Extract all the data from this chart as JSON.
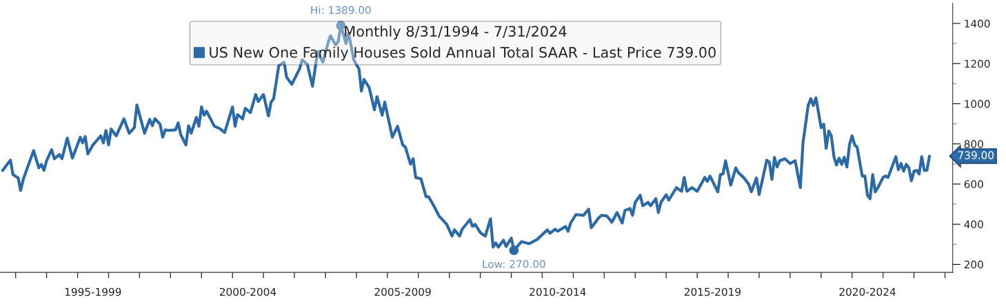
{
  "chart_data": {
    "type": "line",
    "legend_title": "Monthly 8/31/1994 - 7/31/2024",
    "legend": "top",
    "grid": false,
    "marker": "none",
    "line_style": "solid",
    "series": [
      {
        "name": "US New One Family Houses Sold Annual Total SAAR - Last Price 739.00",
        "color": "#2b6aa6",
        "x": [
          "1994-08",
          "1994-11",
          "1994-12",
          "1995-02",
          "1995-03",
          "1995-04",
          "1995-08",
          "1995-10",
          "1995-11",
          "1995-12",
          "1996-01",
          "1996-03",
          "1996-04",
          "1996-06",
          "1996-07",
          "1996-09",
          "1996-11",
          "1997-02",
          "1997-03",
          "1997-04",
          "1997-05",
          "1997-07",
          "1997-10",
          "1997-11",
          "1997-12",
          "1998-01",
          "1998-02",
          "1998-04",
          "1998-07",
          "1998-09",
          "1998-11",
          "1998-12",
          "1999-03",
          "1999-05",
          "1999-06",
          "1999-07",
          "1999-09",
          "1999-10",
          "1999-11",
          "1999-12",
          "2000-03",
          "2000-04",
          "2000-05",
          "2000-07",
          "2000-08",
          "2000-09",
          "2000-11",
          "2000-12",
          "2001-01",
          "2001-02",
          "2001-03",
          "2001-06",
          "2001-08",
          "2001-10",
          "2002-01",
          "2002-02",
          "2002-03",
          "2002-05",
          "2002-06",
          "2002-08",
          "2002-10",
          "2002-11",
          "2003-01",
          "2003-03",
          "2003-04",
          "2003-05",
          "2003-07",
          "2003-09",
          "2003-10",
          "2003-12",
          "2004-03",
          "2004-04",
          "2004-06",
          "2004-08",
          "2004-10",
          "2004-12",
          "2005-02",
          "2005-03",
          "2005-05",
          "2005-06",
          "2005-07",
          "2005-09",
          "2005-10",
          "2005-12",
          "2006-02",
          "2006-03",
          "2006-04",
          "2006-06",
          "2006-08",
          "2006-09",
          "2006-11",
          "2006-12",
          "2007-03",
          "2007-05",
          "2007-07",
          "2007-08",
          "2007-10",
          "2007-11",
          "2007-12",
          "2008-02",
          "2008-04",
          "2008-05",
          "2008-07",
          "2008-09",
          "2008-10",
          "2008-12",
          "2009-02",
          "2009-03",
          "2009-05",
          "2009-06",
          "2009-09",
          "2009-10",
          "2009-11",
          "2010-01",
          "2010-03",
          "2010-05",
          "2010-06",
          "2010-07",
          "2010-08",
          "2010-10",
          "2010-11",
          "2011-01",
          "2011-02",
          "2011-05",
          "2011-08",
          "2011-11",
          "2012-01",
          "2012-03",
          "2012-04",
          "2012-06",
          "2012-07",
          "2012-10",
          "2012-11",
          "2012-12",
          "2013-02",
          "2013-05",
          "2013-07",
          "2013-08",
          "2013-11",
          "2013-12",
          "2014-02",
          "2014-04",
          "2014-06",
          "2014-08",
          "2014-09",
          "2014-11",
          "2014-12",
          "2015-01",
          "2015-03",
          "2015-04",
          "2015-06",
          "2015-07",
          "2015-09",
          "2015-10",
          "2015-11",
          "2016-01",
          "2016-02",
          "2016-05",
          "2016-07",
          "2016-08",
          "2016-09",
          "2016-11",
          "2017-01",
          "2017-04",
          "2017-05",
          "2017-06",
          "2017-09",
          "2017-10",
          "2017-11",
          "2017-12",
          "2018-02",
          "2018-04",
          "2018-05",
          "2018-07",
          "2018-09",
          "2018-10",
          "2018-12",
          "2019-01",
          "2019-04",
          "2019-05",
          "2019-06",
          "2019-07",
          "2019-08",
          "2019-09",
          "2019-11",
          "2020-01",
          "2020-03",
          "2020-05",
          "2020-06",
          "2020-08",
          "2020-09",
          "2020-10",
          "2020-11",
          "2021-01",
          "2021-02",
          "2021-03",
          "2021-04",
          "2021-05",
          "2021-06",
          "2021-07",
          "2021-08",
          "2021-09",
          "2021-10",
          "2021-11",
          "2021-12",
          "2022-01",
          "2022-02",
          "2022-03",
          "2022-05",
          "2022-06",
          "2022-07",
          "2022-08",
          "2022-09",
          "2022-10",
          "2022-11",
          "2023-01",
          "2023-02",
          "2023-03",
          "2023-06",
          "2023-07",
          "2023-08",
          "2023-09",
          "2023-10",
          "2023-11",
          "2023-12",
          "2024-01",
          "2024-02",
          "2024-03",
          "2024-04",
          "2024-05",
          "2024-06",
          "2024-07"
        ],
        "values": [
          668,
          719,
          647,
          630,
          568,
          623,
          767,
          681,
          698,
          668,
          716,
          771,
          726,
          747,
          726,
          829,
          729,
          833,
          805,
          836,
          750,
          795,
          840,
          805,
          867,
          795,
          874,
          840,
          925,
          853,
          881,
          994,
          853,
          922,
          891,
          925,
          898,
          833,
          870,
          867,
          870,
          905,
          846,
          795,
          891,
          853,
          932,
          888,
          984,
          943,
          963,
          888,
          877,
          857,
          984,
          888,
          946,
          925,
          977,
          956,
          1046,
          1011,
          1046,
          939,
          1008,
          1025,
          1190,
          1207,
          1132,
          1097,
          1173,
          1218,
          1197,
          1087,
          1259,
          1207,
          1304,
          1338,
          1293,
          1310,
          1389,
          1300,
          1352,
          1218,
          1173,
          1063,
          1121,
          1080,
          970,
          1035,
          943,
          1008,
          833,
          888,
          795,
          784,
          699,
          726,
          633,
          626,
          537,
          537,
          492,
          441,
          427,
          399,
          341,
          372,
          341,
          375,
          423,
          389,
          399,
          358,
          341,
          427,
          286,
          307,
          286,
          320,
          289,
          331,
          270,
          313,
          303,
          324,
          348,
          372,
          355,
          375,
          365,
          389,
          365,
          406,
          448,
          444,
          475,
          382,
          434,
          444,
          441,
          410,
          458,
          406,
          468,
          478,
          444,
          509,
          544,
          492,
          509,
          492,
          527,
          458,
          509,
          547,
          520,
          582,
          564,
          633,
          564,
          582,
          564,
          633,
          613,
          640,
          561,
          647,
          650,
          716,
          595,
          681,
          657,
          633,
          599,
          561,
          630,
          547,
          719,
          709,
          623,
          733,
          685,
          716,
          726,
          702,
          716,
          582,
          805,
          991,
          1025,
          991,
          1029,
          881,
          898,
          778,
          864,
          840,
          736,
          695,
          729,
          698,
          733,
          685,
          795,
          840,
          795,
          784,
          640,
          640,
          544,
          527,
          647,
          561,
          582,
          633,
          640,
          633,
          736,
          671,
          702,
          664,
          698,
          681,
          616,
          664,
          668,
          650,
          736,
          668,
          668,
          739
        ]
      }
    ],
    "annotations": [
      {
        "text": "Hi: 1389.00",
        "x": "2005-07",
        "y": 1389
      },
      {
        "text": "Low: 270.00",
        "x": "2011-02",
        "y": 270
      },
      {
        "text": "739.00",
        "x": "2024-07",
        "y": 739
      }
    ],
    "xlim": [
      "1994-07",
      "2025-04"
    ],
    "xticks": [
      {
        "value": "1995",
        "label": null
      },
      {
        "value": "1996",
        "label": null
      },
      {
        "value": "1997",
        "label": null
      },
      {
        "value": "1998",
        "label": null
      },
      {
        "value": "1999",
        "label": null
      },
      {
        "value": "2000",
        "label": null
      },
      {
        "value": "2001",
        "label": null
      },
      {
        "value": "2002",
        "label": null
      },
      {
        "value": "2003",
        "label": null
      },
      {
        "value": "2004",
        "label": null
      },
      {
        "value": "2005",
        "label": null
      },
      {
        "value": "2006",
        "label": null
      },
      {
        "value": "2007",
        "label": null
      },
      {
        "value": "2008",
        "label": null
      },
      {
        "value": "2009",
        "label": null
      },
      {
        "value": "2010",
        "label": null
      },
      {
        "value": "2011",
        "label": null
      },
      {
        "value": "2012",
        "label": null
      },
      {
        "value": "2013",
        "label": null
      },
      {
        "value": "2014",
        "label": null
      },
      {
        "value": "2015",
        "label": null
      },
      {
        "value": "2016",
        "label": null
      },
      {
        "value": "2017",
        "label": null
      },
      {
        "value": "2018",
        "label": null
      },
      {
        "value": "2019",
        "label": null
      },
      {
        "value": "2020",
        "label": null
      },
      {
        "value": "2021",
        "label": null
      },
      {
        "value": "2022",
        "label": null
      },
      {
        "value": "2023",
        "label": null
      },
      {
        "value": "2024",
        "label": null
      },
      {
        "value": "2025",
        "label": null
      },
      {
        "value": "1997-07",
        "label": "1995-1999"
      },
      {
        "value": "2002-07",
        "label": "2000-2004"
      },
      {
        "value": "2007-07",
        "label": "2005-2009"
      },
      {
        "value": "2012-07",
        "label": "2010-2014"
      },
      {
        "value": "2017-07",
        "label": "2015-2019"
      },
      {
        "value": "2022-07",
        "label": "2020-2024"
      }
    ],
    "ylim": [
      160,
      1500
    ],
    "yticks": [
      200,
      {
        "value": 300,
        "label": null
      },
      400,
      {
        "value": 500,
        "label": null
      },
      600,
      {
        "value": 700,
        "label": null
      },
      800,
      {
        "value": 900,
        "label": null
      },
      1000,
      {
        "value": 1100,
        "label": null
      },
      1200,
      {
        "value": 1300,
        "label": null
      },
      1400
    ]
  }
}
